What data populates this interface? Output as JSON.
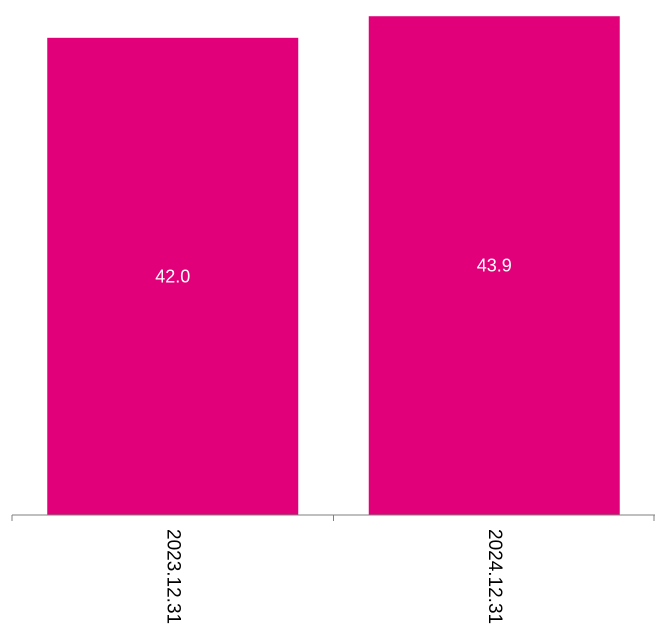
{
  "chart_data": {
    "type": "bar",
    "categories": [
      "2023.12.31",
      "2024.12.31"
    ],
    "values": [
      42.0,
      43.9
    ],
    "data_labels": [
      "42.0",
      "43.9"
    ],
    "title": "",
    "xlabel": "",
    "ylabel": "",
    "ylim": [
      0,
      44.8
    ],
    "grid": false,
    "legend": "none",
    "bar_color": "#E2007A",
    "axis_color": "#7f7f7f",
    "label_color": "#ffffff"
  }
}
